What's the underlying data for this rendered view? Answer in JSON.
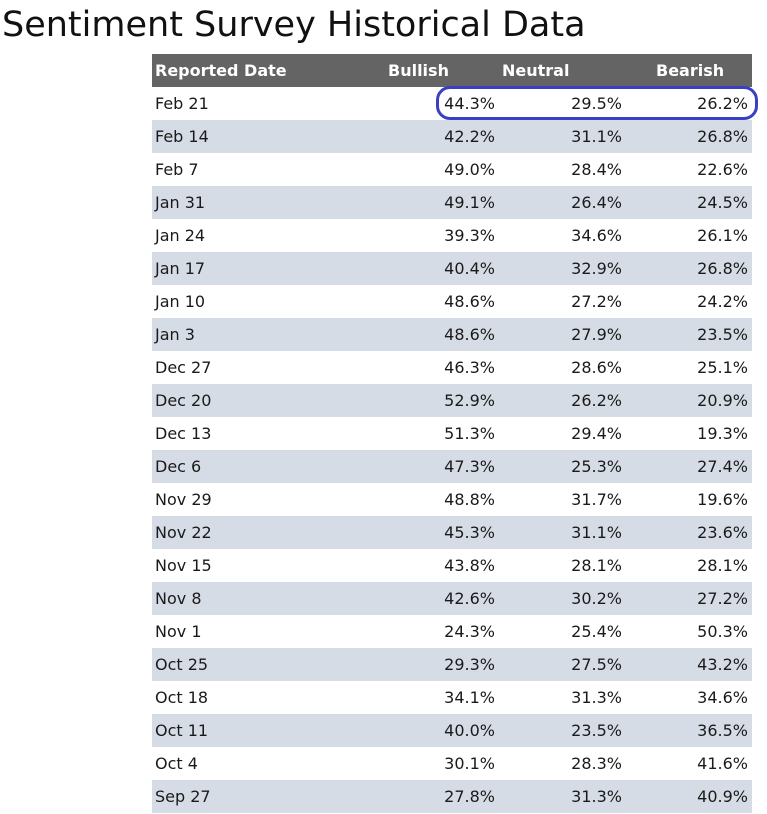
{
  "title": "Sentiment Survey Historical Data",
  "colors": {
    "header_bg": "#646464",
    "alt_row": "#d6dce6",
    "highlight": "#3b3fc4"
  },
  "chart_data": {
    "type": "table",
    "title": "Sentiment Survey Historical Data",
    "columns": [
      "Reported Date",
      "Bullish",
      "Neutral",
      "Bearish"
    ],
    "rows": [
      [
        "Feb 21",
        "44.3%",
        "29.5%",
        "26.2%"
      ],
      [
        "Feb 14",
        "42.2%",
        "31.1%",
        "26.8%"
      ],
      [
        "Feb 7",
        "49.0%",
        "28.4%",
        "22.6%"
      ],
      [
        "Jan 31",
        "49.1%",
        "26.4%",
        "24.5%"
      ],
      [
        "Jan 24",
        "39.3%",
        "34.6%",
        "26.1%"
      ],
      [
        "Jan 17",
        "40.4%",
        "32.9%",
        "26.8%"
      ],
      [
        "Jan 10",
        "48.6%",
        "27.2%",
        "24.2%"
      ],
      [
        "Jan 3",
        "48.6%",
        "27.9%",
        "23.5%"
      ],
      [
        "Dec 27",
        "46.3%",
        "28.6%",
        "25.1%"
      ],
      [
        "Dec 20",
        "52.9%",
        "26.2%",
        "20.9%"
      ],
      [
        "Dec 13",
        "51.3%",
        "29.4%",
        "19.3%"
      ],
      [
        "Dec 6",
        "47.3%",
        "25.3%",
        "27.4%"
      ],
      [
        "Nov 29",
        "48.8%",
        "31.7%",
        "19.6%"
      ],
      [
        "Nov 22",
        "45.3%",
        "31.1%",
        "23.6%"
      ],
      [
        "Nov 15",
        "43.8%",
        "28.1%",
        "28.1%"
      ],
      [
        "Nov 8",
        "42.6%",
        "30.2%",
        "27.2%"
      ],
      [
        "Nov 1",
        "24.3%",
        "25.4%",
        "50.3%"
      ],
      [
        "Oct 25",
        "29.3%",
        "27.5%",
        "43.2%"
      ],
      [
        "Oct 18",
        "34.1%",
        "31.3%",
        "34.6%"
      ],
      [
        "Oct 11",
        "40.0%",
        "23.5%",
        "36.5%"
      ],
      [
        "Oct 4",
        "30.1%",
        "28.3%",
        "41.6%"
      ],
      [
        "Sep 27",
        "27.8%",
        "31.3%",
        "40.9%"
      ]
    ],
    "highlighted_row": 0
  }
}
